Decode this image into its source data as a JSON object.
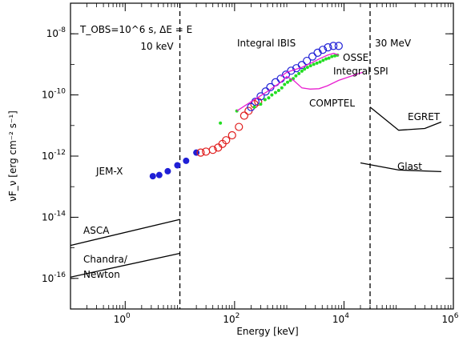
{
  "chart_data": {
    "type": "scatter",
    "title": "",
    "xlabel": "Energy [keV]",
    "ylabel": "νF_ν [erg cm⁻² s⁻¹]",
    "x_scale": "log",
    "y_scale": "log",
    "xlim": [
      0.1,
      1000000
    ],
    "ylim": [
      1e-17,
      1e-07
    ],
    "xticks": [
      {
        "value": 1,
        "label": "10^0"
      },
      {
        "value": 100,
        "label": "10^2"
      },
      {
        "value": 10000,
        "label": "10^4"
      },
      {
        "value": 1000000,
        "label": "10^6"
      }
    ],
    "yticks": [
      {
        "value": 1e-16,
        "label": "10^-16"
      },
      {
        "value": 1e-14,
        "label": "10^-14"
      },
      {
        "value": 1e-12,
        "label": "10^-12"
      },
      {
        "value": 1e-10,
        "label": "10^-10"
      },
      {
        "value": 1e-08,
        "label": "10^-8"
      }
    ],
    "obs_note": "T_OBS=10^6 s, ΔE = E",
    "vlines": [
      {
        "x": 10,
        "label": "10 keV",
        "style": "dashed"
      },
      {
        "x": 30000,
        "label": "30 MeV",
        "style": "dashed"
      }
    ],
    "series": [
      {
        "name": "JEM-X",
        "kind": "points",
        "marker": "filled-circle",
        "color": "#1f1fd6",
        "x": [
          3.2,
          4.2,
          6.0,
          9.0,
          13.0,
          20.0
        ],
        "y": [
          2.2e-13,
          2.4e-13,
          3.2e-13,
          5e-13,
          7e-13,
          1.3e-12
        ]
      },
      {
        "name": "",
        "kind": "points",
        "marker": "open-circle",
        "color": "#e01c1c",
        "x": [
          24,
          30,
          40,
          50,
          60,
          70,
          90,
          120,
          150,
          180,
          230,
          270
        ],
        "y": [
          1.3e-12,
          1.4e-12,
          1.6e-12,
          1.9e-12,
          2.5e-12,
          3.3e-12,
          4.8e-12,
          9e-12,
          2.1e-11,
          3e-11,
          5e-11,
          6e-11
        ]
      },
      {
        "name": "Integral IBIS",
        "kind": "points",
        "marker": "open-circle",
        "color": "#1f1fd6",
        "x": [
          200,
          240,
          300,
          370,
          450,
          560,
          700,
          870,
          1080,
          1350,
          1700,
          2100,
          2650,
          3300,
          4100,
          5100,
          6400,
          8000
        ],
        "y": [
          4e-11,
          6e-11,
          9e-11,
          1.3e-10,
          1.8e-10,
          2.6e-10,
          3.4e-10,
          4.6e-10,
          6.2e-10,
          7.5e-10,
          9.5e-10,
          1.3e-09,
          1.8e-09,
          2.4e-09,
          3e-09,
          3.6e-09,
          4e-09,
          4e-09
        ]
      },
      {
        "name": "Integral SPI",
        "kind": "points",
        "marker": "small-dot",
        "color": "#22dd22",
        "x": [
          55,
          110,
          230,
          300,
          360,
          420,
          480,
          560,
          640,
          730,
          820,
          930,
          1050,
          1180,
          1320,
          1500,
          1700,
          1900,
          2150,
          2450,
          2800,
          3200,
          3650,
          4150,
          4700,
          5300,
          6000,
          6800,
          7600
        ],
        "y": [
          1.2e-11,
          3e-11,
          4e-11,
          5e-11,
          7e-11,
          8e-11,
          1e-10,
          1.2e-10,
          1.4e-10,
          1.7e-10,
          2.2e-10,
          2.6e-10,
          3e-10,
          3.4e-10,
          4.2e-10,
          5e-10,
          6e-10,
          7e-10,
          8e-10,
          9e-10,
          1e-09,
          1.1e-09,
          1.2e-09,
          1.35e-09,
          1.5e-09,
          1.6e-09,
          1.8e-09,
          1.9e-09,
          2e-09
        ]
      },
      {
        "name": "COMPTEL",
        "kind": "line",
        "color": "#e81ed0",
        "x": [
          110,
          200,
          400,
          700,
          900,
          1200,
          1700,
          2400,
          3500,
          5000,
          8000,
          14000,
          22000
        ],
        "y": [
          3e-11,
          6e-11,
          1.3e-10,
          2.6e-10,
          4e-10,
          3e-10,
          1.7e-10,
          1.55e-10,
          1.6e-10,
          2e-10,
          3e-10,
          4.2e-10,
          5.5e-10
        ]
      },
      {
        "name": "OSSE",
        "kind": "line",
        "color": "#e81ed0",
        "x": [
          700,
          900,
          1200,
          1700,
          2500,
          3500,
          5000,
          6500,
          8000
        ],
        "y": [
          4e-10,
          5.5e-10,
          6.5e-10,
          8e-10,
          1.1e-09,
          1.5e-09,
          2e-09,
          2.3e-09,
          2e-09
        ]
      },
      {
        "name": "EGRET",
        "kind": "line",
        "color": "#000000",
        "x": [
          30000,
          100000,
          300000,
          600000
        ],
        "y": [
          4e-11,
          7e-12,
          8e-12,
          1.3e-11
        ]
      },
      {
        "name": "Glast",
        "kind": "line",
        "color": "#000000",
        "x": [
          20000,
          100000,
          600000
        ],
        "y": [
          6e-13,
          3.5e-13,
          3.1e-13
        ]
      },
      {
        "name": "ASCA",
        "kind": "line",
        "color": "#000000",
        "x": [
          0.1,
          10
        ],
        "y": [
          1.2e-15,
          8.5e-15
        ]
      },
      {
        "name": "Chandra/ Newton",
        "kind": "line",
        "color": "#000000",
        "x": [
          0.1,
          10
        ],
        "y": [
          1.1e-16,
          6.6e-16
        ]
      }
    ],
    "annotations": [
      {
        "text": "JEM-X",
        "series": "JEM-X"
      },
      {
        "text": "Integral IBIS",
        "series": "Integral IBIS"
      },
      {
        "text": "OSSE",
        "series": "OSSE"
      },
      {
        "text": "Integral SPI",
        "series": "Integral SPI"
      },
      {
        "text": "COMPTEL",
        "series": "COMPTEL"
      },
      {
        "text": "EGRET",
        "series": "EGRET"
      },
      {
        "text": "Glast",
        "series": "Glast"
      },
      {
        "text": "ASCA",
        "series": "ASCA"
      },
      {
        "text": "Chandra/",
        "series": "Chandra/ Newton"
      },
      {
        "text": "Newton",
        "series": "Chandra/ Newton"
      }
    ],
    "grid": false,
    "legend": "none"
  }
}
